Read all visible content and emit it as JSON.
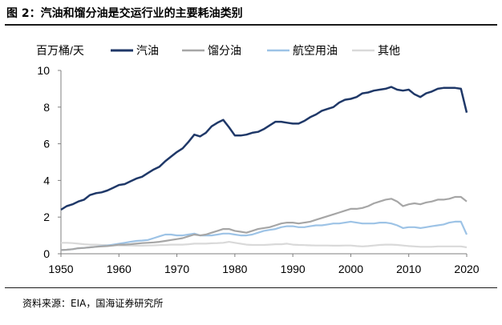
{
  "figure": {
    "title": "图 2：汽油和馏分油是交运行业的主要耗油类别",
    "source": "资料来源：EIA，国海证券研究所"
  },
  "colors": {
    "gasoline": "#1f3868",
    "distillate": "#a6a6a6",
    "jet_fuel": "#9dc3e6",
    "other": "#d9d9d9"
  },
  "chart_data": {
    "type": "line",
    "title": "",
    "xlabel": "",
    "ylabel": "百万桶/天",
    "xlim": [
      1950,
      2020
    ],
    "ylim": [
      0,
      10
    ],
    "xticks": [
      1950,
      1960,
      1970,
      1980,
      1990,
      2000,
      2010,
      2020
    ],
    "yticks": [
      0,
      2,
      4,
      6,
      8,
      10
    ],
    "legend_position": "top",
    "grid": false,
    "x": [
      1950,
      1951,
      1952,
      1953,
      1954,
      1955,
      1956,
      1957,
      1958,
      1959,
      1960,
      1961,
      1962,
      1963,
      1964,
      1965,
      1966,
      1967,
      1968,
      1969,
      1970,
      1971,
      1972,
      1973,
      1974,
      1975,
      1976,
      1977,
      1978,
      1979,
      1980,
      1981,
      1982,
      1983,
      1984,
      1985,
      1986,
      1987,
      1988,
      1989,
      1990,
      1991,
      1992,
      1993,
      1994,
      1995,
      1996,
      1997,
      1998,
      1999,
      2000,
      2001,
      2002,
      2003,
      2004,
      2005,
      2006,
      2007,
      2008,
      2009,
      2010,
      2011,
      2012,
      2013,
      2014,
      2015,
      2016,
      2017,
      2018,
      2019,
      2020
    ],
    "series": [
      {
        "name": "汽油",
        "color_key": "gasoline",
        "values": [
          2.4,
          2.6,
          2.7,
          2.85,
          2.95,
          3.2,
          3.3,
          3.35,
          3.45,
          3.6,
          3.75,
          3.8,
          3.95,
          4.1,
          4.2,
          4.4,
          4.6,
          4.75,
          5.05,
          5.3,
          5.55,
          5.75,
          6.1,
          6.5,
          6.4,
          6.6,
          6.95,
          7.15,
          7.3,
          6.9,
          6.45,
          6.45,
          6.5,
          6.6,
          6.65,
          6.8,
          7.0,
          7.2,
          7.2,
          7.15,
          7.1,
          7.1,
          7.25,
          7.45,
          7.6,
          7.8,
          7.9,
          8.0,
          8.25,
          8.4,
          8.45,
          8.55,
          8.75,
          8.8,
          8.9,
          8.95,
          9.0,
          9.1,
          8.95,
          8.9,
          8.95,
          8.7,
          8.55,
          8.75,
          8.85,
          9.0,
          9.05,
          9.05,
          9.05,
          9.0,
          7.7
        ]
      },
      {
        "name": "馏分油",
        "color_key": "distillate",
        "values": [
          0.2,
          0.22,
          0.25,
          0.3,
          0.32,
          0.35,
          0.38,
          0.4,
          0.42,
          0.45,
          0.5,
          0.5,
          0.52,
          0.55,
          0.58,
          0.6,
          0.62,
          0.65,
          0.7,
          0.75,
          0.8,
          0.85,
          0.95,
          1.05,
          1.0,
          1.05,
          1.15,
          1.25,
          1.35,
          1.35,
          1.25,
          1.2,
          1.15,
          1.25,
          1.35,
          1.4,
          1.45,
          1.55,
          1.65,
          1.7,
          1.7,
          1.65,
          1.7,
          1.75,
          1.85,
          1.95,
          2.05,
          2.15,
          2.25,
          2.35,
          2.45,
          2.45,
          2.5,
          2.6,
          2.75,
          2.85,
          2.95,
          3.0,
          2.85,
          2.6,
          2.7,
          2.75,
          2.7,
          2.8,
          2.85,
          2.95,
          2.95,
          3.0,
          3.1,
          3.1,
          2.85
        ]
      },
      {
        "name": "航空用油",
        "color_key": "jet_fuel",
        "values": [
          0.2,
          0.22,
          0.25,
          0.3,
          0.32,
          0.35,
          0.38,
          0.42,
          0.45,
          0.5,
          0.55,
          0.6,
          0.65,
          0.7,
          0.72,
          0.75,
          0.85,
          0.95,
          1.05,
          1.05,
          1.0,
          1.0,
          1.05,
          1.1,
          1.0,
          1.0,
          1.0,
          1.05,
          1.1,
          1.1,
          1.05,
          1.0,
          1.0,
          1.05,
          1.15,
          1.25,
          1.3,
          1.35,
          1.45,
          1.5,
          1.5,
          1.45,
          1.45,
          1.5,
          1.55,
          1.55,
          1.6,
          1.65,
          1.65,
          1.7,
          1.75,
          1.7,
          1.65,
          1.65,
          1.65,
          1.7,
          1.7,
          1.65,
          1.55,
          1.4,
          1.45,
          1.45,
          1.4,
          1.45,
          1.5,
          1.55,
          1.6,
          1.7,
          1.75,
          1.75,
          1.05
        ]
      },
      {
        "name": "其他",
        "color_key": "other",
        "values": [
          0.6,
          0.6,
          0.58,
          0.55,
          0.52,
          0.5,
          0.5,
          0.48,
          0.47,
          0.46,
          0.45,
          0.45,
          0.45,
          0.44,
          0.44,
          0.45,
          0.46,
          0.47,
          0.48,
          0.5,
          0.5,
          0.5,
          0.52,
          0.55,
          0.55,
          0.55,
          0.57,
          0.58,
          0.6,
          0.65,
          0.6,
          0.55,
          0.5,
          0.48,
          0.48,
          0.48,
          0.5,
          0.52,
          0.52,
          0.55,
          0.5,
          0.48,
          0.47,
          0.46,
          0.45,
          0.45,
          0.45,
          0.44,
          0.44,
          0.45,
          0.45,
          0.42,
          0.4,
          0.42,
          0.45,
          0.48,
          0.5,
          0.5,
          0.48,
          0.45,
          0.42,
          0.4,
          0.38,
          0.38,
          0.38,
          0.4,
          0.4,
          0.4,
          0.4,
          0.4,
          0.35
        ]
      }
    ]
  }
}
